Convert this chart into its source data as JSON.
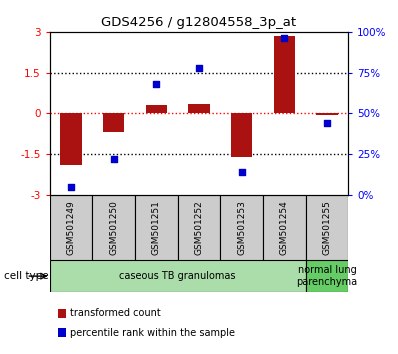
{
  "title": "GDS4256 / g12804558_3p_at",
  "samples": [
    "GSM501249",
    "GSM501250",
    "GSM501251",
    "GSM501252",
    "GSM501253",
    "GSM501254",
    "GSM501255"
  ],
  "red_bars": [
    -1.9,
    -0.7,
    0.3,
    0.35,
    -1.6,
    2.85,
    -0.05
  ],
  "blue_squares_pct": [
    5,
    22,
    68,
    78,
    14,
    96,
    44
  ],
  "ylim_left": [
    -3,
    3
  ],
  "ylim_right": [
    0,
    100
  ],
  "yticks_left": [
    -3,
    -1.5,
    0,
    1.5,
    3
  ],
  "ytick_labels_left": [
    "-3",
    "-1.5",
    "0",
    "1.5",
    "3"
  ],
  "yticks_right": [
    0,
    25,
    50,
    75,
    100
  ],
  "ytick_labels_right": [
    "0%",
    "25%",
    "50%",
    "75%",
    "100%"
  ],
  "hlines_black": [
    -1.5,
    1.5
  ],
  "hline_red": 0,
  "bar_color": "#aa1111",
  "square_color": "#0000cc",
  "groups": [
    {
      "label": "caseous TB granulomas",
      "samples": [
        0,
        1,
        2,
        3,
        4,
        5
      ],
      "color": "#aaddaa"
    },
    {
      "label": "normal lung\nparenchyma",
      "samples": [
        6
      ],
      "color": "#66cc66"
    }
  ],
  "cell_type_label": "cell type",
  "legend_red": "transformed count",
  "legend_blue": "percentile rank within the sample",
  "bg_color": "#ffffff",
  "plot_bg": "#ffffff",
  "bar_width": 0.5,
  "sample_box_color": "#cccccc"
}
